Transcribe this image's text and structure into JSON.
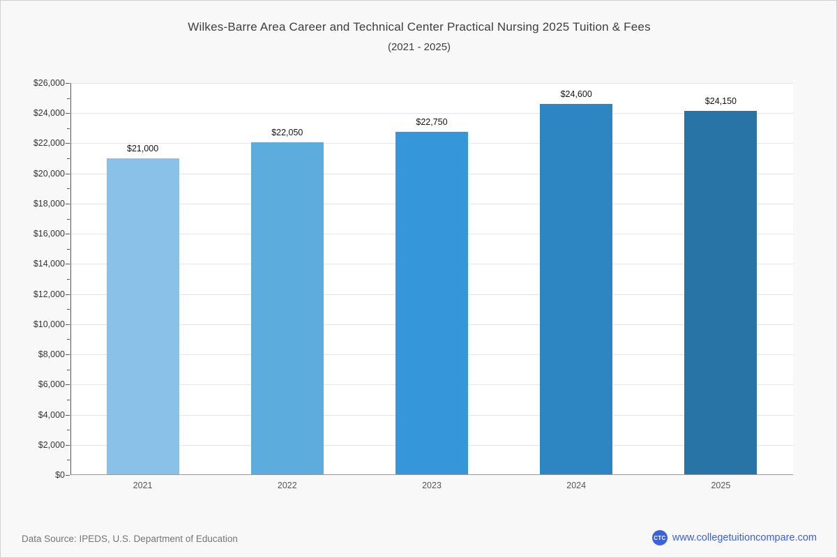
{
  "page": {
    "title": "Wilkes-Barre Area Career and Technical Center Practical Nursing 2025 Tuition & Fees",
    "subtitle": "(2021 - 2025)"
  },
  "chart_data": {
    "type": "bar",
    "title": "Wilkes-Barre Area Career and Technical Center Practical Nursing 2025 Tuition & Fees (2021 - 2025)",
    "categories": [
      "2021",
      "2022",
      "2023",
      "2024",
      "2025"
    ],
    "values": [
      21000,
      22050,
      22750,
      24600,
      24150
    ],
    "value_labels": [
      "$21,000",
      "$22,050",
      "$22,750",
      "$24,600",
      "$24,150"
    ],
    "bar_colors": [
      "#89c1e8",
      "#5caddd",
      "#3596d9",
      "#2d85c1",
      "#2874a6"
    ],
    "xlabel": "",
    "ylabel": "",
    "ylim": [
      0,
      26000
    ],
    "ytick_major_step": 2000,
    "ytick_minor_step": 1000,
    "ytick_labels": [
      "$0",
      "$2,000",
      "$4,000",
      "$6,000",
      "$8,000",
      "$10,000",
      "$12,000",
      "$14,000",
      "$16,000",
      "$18,000",
      "$20,000",
      "$22,000",
      "$24,000",
      "$26,000"
    ],
    "grid": "horizontal-major",
    "legend": "none",
    "plot_background": "#ffffff",
    "page_background": "#f8f8f8"
  },
  "footer": {
    "source": "Data Source: IPEDS, U.S. Department of Education",
    "logo_text": "CTC",
    "website": "www.collegetuitioncompare.com",
    "link_color": "#3c5ed8"
  }
}
